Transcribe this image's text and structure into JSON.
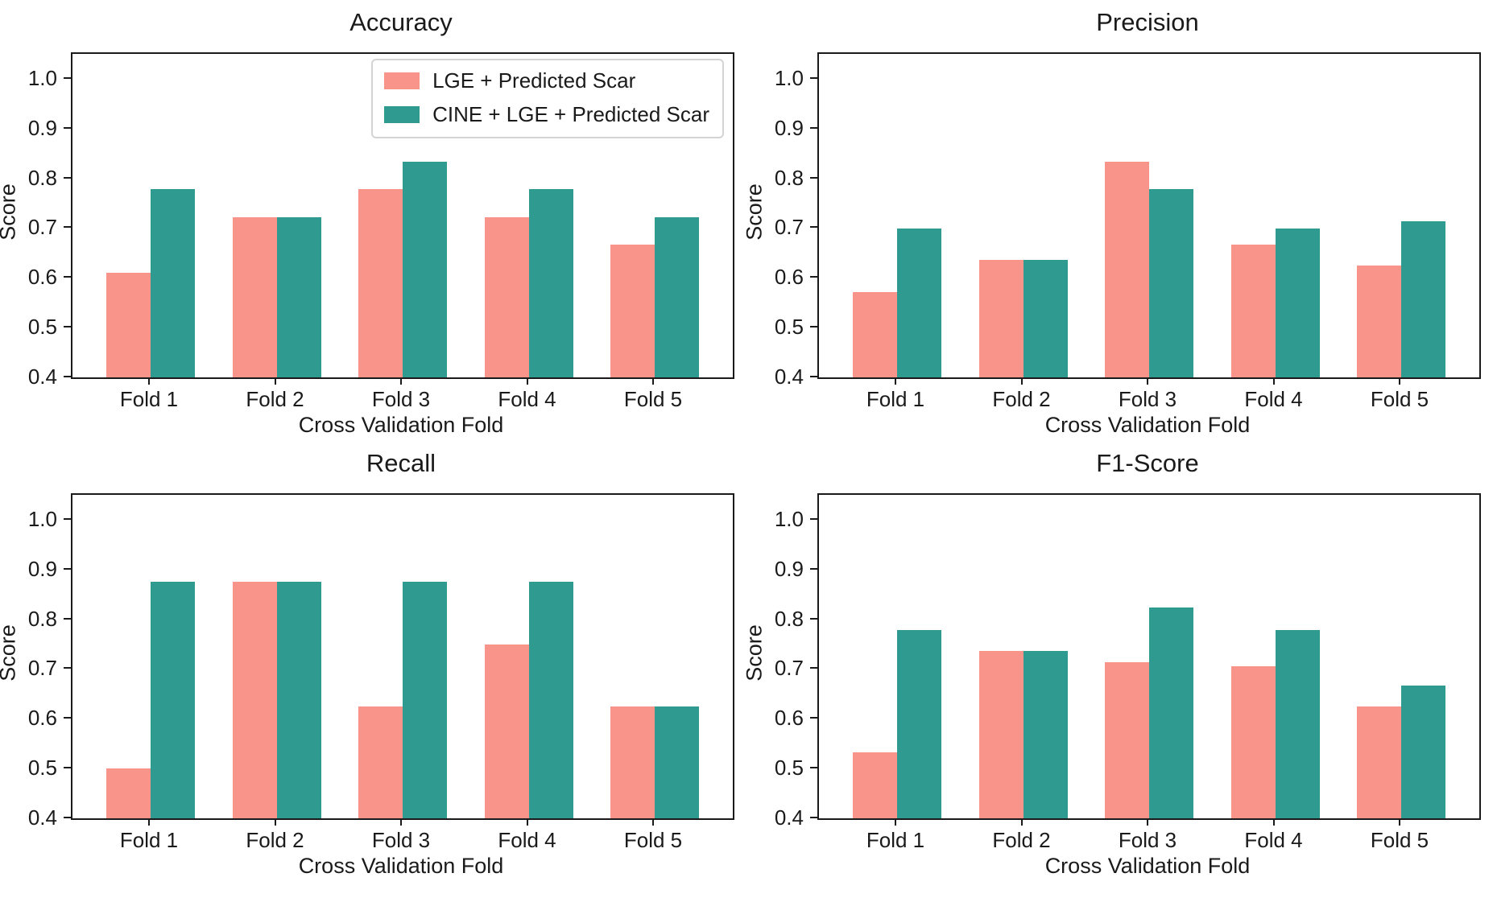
{
  "figure": {
    "background": "#ffffff",
    "text_color": "#1a1a1a",
    "spine_color": "#1a1a1a",
    "series_colors": {
      "lge": "#F9948A",
      "cine": "#2F9A90"
    }
  },
  "legend": {
    "visible_on": "Accuracy",
    "position": "upper right",
    "entries": [
      {
        "label": "LGE + Predicted Scar",
        "color": "#F9948A",
        "swatch": "lge-swatch"
      },
      {
        "label": "CINE + LGE + Predicted Scar",
        "color": "#2F9A90",
        "swatch": "cine-swatch"
      }
    ]
  },
  "chart_data": [
    {
      "type": "bar",
      "title": "Accuracy",
      "xlabel": "Cross Validation Fold",
      "ylabel": "Score",
      "categories": [
        "Fold 1",
        "Fold 2",
        "Fold 3",
        "Fold 4",
        "Fold 5"
      ],
      "series": [
        {
          "name": "LGE + Predicted Scar",
          "color": "#F9948A",
          "values": [
            0.611,
            0.722,
            0.778,
            0.722,
            0.667
          ]
        },
        {
          "name": "CINE + LGE + Predicted Scar",
          "color": "#2F9A90",
          "values": [
            0.778,
            0.722,
            0.833,
            0.778,
            0.722
          ]
        }
      ],
      "ylim": [
        0.4,
        1.05
      ],
      "yticks": [
        0.4,
        0.5,
        0.6,
        0.7,
        0.8,
        0.9,
        1.0
      ],
      "grid": false,
      "legend_visible": true
    },
    {
      "type": "bar",
      "title": "Precision",
      "xlabel": "Cross Validation Fold",
      "ylabel": "Score",
      "categories": [
        "Fold 1",
        "Fold 2",
        "Fold 3",
        "Fold 4",
        "Fold 5"
      ],
      "series": [
        {
          "name": "LGE + Predicted Scar",
          "color": "#F9948A",
          "values": [
            0.571,
            0.636,
            0.833,
            0.667,
            0.625
          ]
        },
        {
          "name": "CINE + LGE + Predicted Scar",
          "color": "#2F9A90",
          "values": [
            0.7,
            0.636,
            0.778,
            0.7,
            0.714
          ]
        }
      ],
      "ylim": [
        0.4,
        1.05
      ],
      "yticks": [
        0.4,
        0.5,
        0.6,
        0.7,
        0.8,
        0.9,
        1.0
      ],
      "grid": false,
      "legend_visible": false
    },
    {
      "type": "bar",
      "title": "Recall",
      "xlabel": "Cross Validation Fold",
      "ylabel": "Score",
      "categories": [
        "Fold 1",
        "Fold 2",
        "Fold 3",
        "Fold 4",
        "Fold 5"
      ],
      "series": [
        {
          "name": "LGE + Predicted Scar",
          "color": "#F9948A",
          "values": [
            0.5,
            0.875,
            0.625,
            0.75,
            0.625
          ]
        },
        {
          "name": "CINE + LGE + Predicted Scar",
          "color": "#2F9A90",
          "values": [
            0.875,
            0.875,
            0.875,
            0.875,
            0.625
          ]
        }
      ],
      "ylim": [
        0.4,
        1.05
      ],
      "yticks": [
        0.4,
        0.5,
        0.6,
        0.7,
        0.8,
        0.9,
        1.0
      ],
      "grid": false,
      "legend_visible": false
    },
    {
      "type": "bar",
      "title": "F1-Score",
      "xlabel": "Cross Validation Fold",
      "ylabel": "Score",
      "categories": [
        "Fold 1",
        "Fold 2",
        "Fold 3",
        "Fold 4",
        "Fold 5"
      ],
      "series": [
        {
          "name": "LGE + Predicted Scar",
          "color": "#F9948A",
          "values": [
            0.533,
            0.737,
            0.714,
            0.706,
            0.625
          ]
        },
        {
          "name": "CINE + LGE + Predicted Scar",
          "color": "#2F9A90",
          "values": [
            0.778,
            0.737,
            0.824,
            0.778,
            0.667
          ]
        }
      ],
      "ylim": [
        0.4,
        1.05
      ],
      "yticks": [
        0.4,
        0.5,
        0.6,
        0.7,
        0.8,
        0.9,
        1.0
      ],
      "grid": false,
      "legend_visible": false
    }
  ]
}
